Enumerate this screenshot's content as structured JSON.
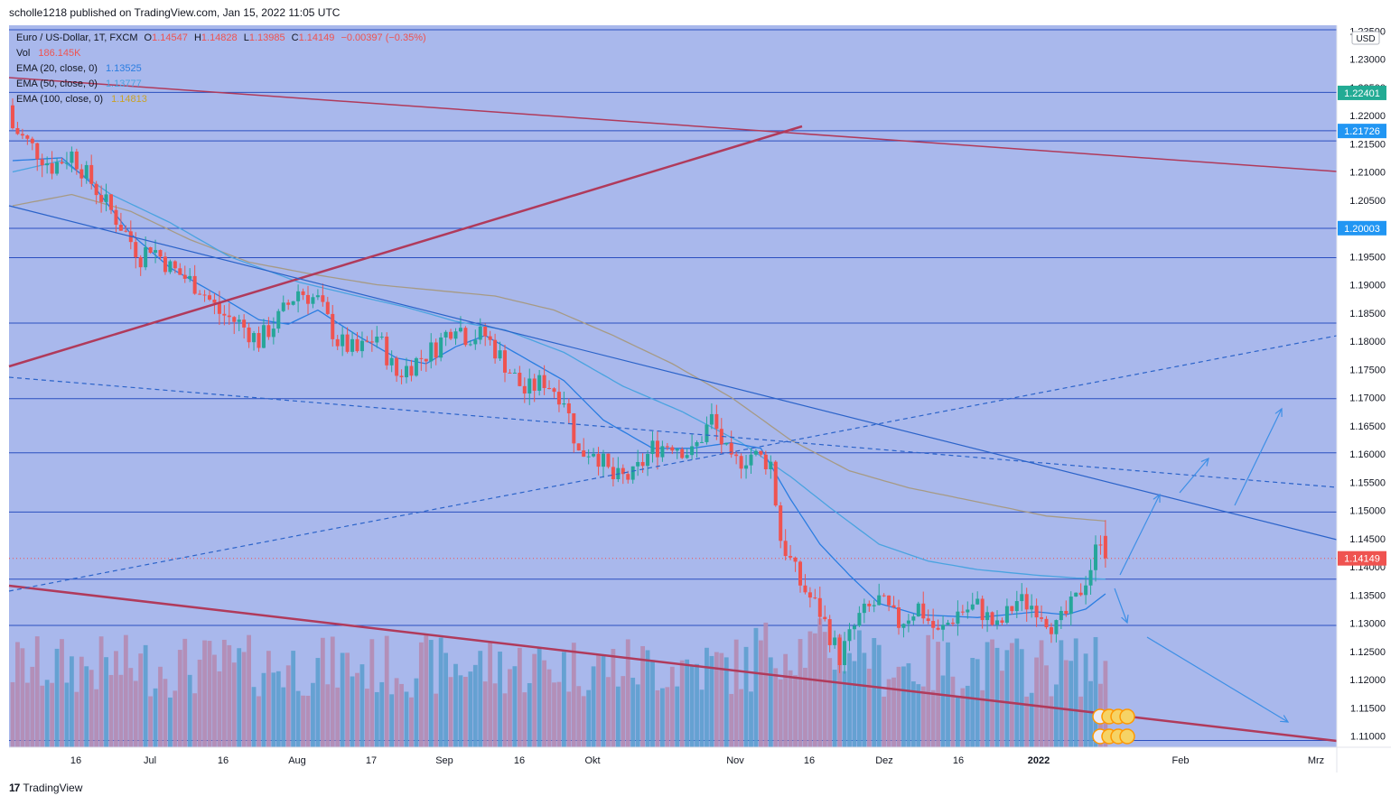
{
  "header": {
    "text": "scholle1218 published on TradingView.com, Jan 15, 2022 11:05 UTC"
  },
  "legend": {
    "symbol": "Euro / US-Dollar, 1T, FXCM",
    "ohlc": {
      "o_label": "O",
      "o": "1.14547",
      "h_label": "H",
      "h": "1.14828",
      "l_label": "L",
      "l": "1.13985",
      "c_label": "C",
      "c": "1.14149",
      "change": "−0.00397 (−0.35%)"
    },
    "vol": {
      "label": "Vol",
      "value": "186.145K"
    },
    "ema20": {
      "label": "EMA (20, close, 0)",
      "value": "1.13525"
    },
    "ema50": {
      "label": "EMA (50, close, 0)",
      "value": "1.13777"
    },
    "ema100": {
      "label": "EMA (100, close, 0)",
      "value": "1.14813"
    }
  },
  "footer": {
    "logo": "17",
    "brand": "TradingView"
  },
  "colors": {
    "background": "#a9b8ec",
    "up": "#26a69a",
    "down": "#ef5350",
    "ema20": "#2a7de1",
    "ema50": "#4aa3e0",
    "ema100": "#a69a85",
    "trendline": "#b03a5b",
    "drawing_blue": "#2b63c9",
    "arrows": "#3d8fe6",
    "label_green": "#22ab94",
    "label_blue": "#2196f3",
    "volume_up": "#5d9fcf",
    "volume_down": "#b48bb3"
  },
  "chart_data": {
    "type": "candlestick",
    "currency": "USD",
    "ylim": [
      1.108,
      1.236
    ],
    "y_ticks": [
      "1.23500",
      "1.23000",
      "1.22500",
      "1.22000",
      "1.21500",
      "1.21000",
      "1.20500",
      "1.20000",
      "1.19500",
      "1.19000",
      "1.18500",
      "1.18000",
      "1.17500",
      "1.17000",
      "1.16500",
      "1.16000",
      "1.15500",
      "1.15000",
      "1.14500",
      "1.14000",
      "1.13500",
      "1.13000",
      "1.12500",
      "1.12000",
      "1.11500",
      "1.11000"
    ],
    "x_ticks": [
      "16",
      "Jul",
      "16",
      "Aug",
      "17",
      "Sep",
      "16",
      "Okt",
      "Nov",
      "16",
      "Dez",
      "16",
      "2022",
      "Feb",
      "Mrz"
    ],
    "price_labels": [
      {
        "value": "1.22401",
        "color": "#22ab94"
      },
      {
        "value": "1.21726",
        "color": "#2196f3"
      },
      {
        "value": "1.20003",
        "color": "#2196f3"
      },
      {
        "value": "1.14149",
        "color": "#ef5350"
      }
    ],
    "horizontal_levels": [
      1.2352,
      1.2241,
      1.2173,
      1.2155,
      1.2,
      1.1948,
      1.1832,
      1.1698,
      1.1602,
      1.1497,
      1.1378,
      1.1296,
      1.1092
    ],
    "last_price": 1.14149,
    "ohlc_last": {
      "open": 1.14547,
      "high": 1.14828,
      "low": 1.13985,
      "close": 1.14149
    },
    "ema20_last": 1.13525,
    "ema50_last": 1.13777,
    "ema100_last": 1.14813,
    "volume_last": "186.145K",
    "close_path": [
      [
        0,
        1.2178
      ],
      [
        8,
        1.211
      ],
      [
        12,
        1.2132
      ],
      [
        22,
        1.2005
      ],
      [
        26,
        1.195
      ],
      [
        28,
        1.197
      ],
      [
        32,
        1.193
      ],
      [
        38,
        1.1895
      ],
      [
        42,
        1.185
      ],
      [
        46,
        1.1832
      ],
      [
        50,
        1.18
      ],
      [
        54,
        1.184
      ],
      [
        58,
        1.189
      ],
      [
        62,
        1.1872
      ],
      [
        66,
        1.18
      ],
      [
        70,
        1.178
      ],
      [
        74,
        1.181
      ],
      [
        78,
        1.174
      ],
      [
        82,
        1.1765
      ],
      [
        86,
        1.179
      ],
      [
        90,
        1.1835
      ],
      [
        92,
        1.181
      ],
      [
        96,
        1.181
      ],
      [
        100,
        1.176
      ],
      [
        104,
        1.171
      ],
      [
        108,
        1.173
      ],
      [
        112,
        1.17
      ],
      [
        115,
        1.16
      ],
      [
        118,
        1.161
      ],
      [
        122,
        1.1555
      ],
      [
        126,
        1.156
      ],
      [
        130,
        1.161
      ],
      [
        134,
        1.162
      ],
      [
        138,
        1.16
      ],
      [
        142,
        1.1662
      ],
      [
        146,
        1.158
      ],
      [
        150,
        1.16
      ],
      [
        154,
        1.1584
      ],
      [
        156,
        1.145
      ],
      [
        160,
        1.137
      ],
      [
        164,
        1.132
      ],
      [
        168,
        1.124
      ],
      [
        172,
        1.131
      ],
      [
        176,
        1.134
      ],
      [
        180,
        1.13
      ],
      [
        184,
        1.133
      ],
      [
        188,
        1.128
      ],
      [
        192,
        1.132
      ],
      [
        196,
        1.133
      ],
      [
        200,
        1.129
      ],
      [
        204,
        1.134
      ],
      [
        208,
        1.133
      ],
      [
        212,
        1.129
      ],
      [
        216,
        1.134
      ],
      [
        219,
        1.14
      ],
      [
        221,
        1.1454
      ],
      [
        222,
        1.1415
      ]
    ],
    "ema20_path": [
      [
        0,
        1.212
      ],
      [
        10,
        1.2125
      ],
      [
        16,
        1.208
      ],
      [
        24,
        1.199
      ],
      [
        32,
        1.193
      ],
      [
        42,
        1.188
      ],
      [
        50,
        1.1838
      ],
      [
        56,
        1.183
      ],
      [
        62,
        1.1855
      ],
      [
        70,
        1.181
      ],
      [
        78,
        1.177
      ],
      [
        84,
        1.176
      ],
      [
        90,
        1.179
      ],
      [
        96,
        1.181
      ],
      [
        104,
        1.177
      ],
      [
        112,
        1.173
      ],
      [
        120,
        1.166
      ],
      [
        130,
        1.161
      ],
      [
        138,
        1.161
      ],
      [
        146,
        1.162
      ],
      [
        152,
        1.161
      ],
      [
        158,
        1.152
      ],
      [
        164,
        1.144
      ],
      [
        170,
        1.1385
      ],
      [
        176,
        1.1335
      ],
      [
        184,
        1.1315
      ],
      [
        196,
        1.131
      ],
      [
        208,
        1.132
      ],
      [
        214,
        1.1315
      ],
      [
        218,
        1.1325
      ],
      [
        222,
        1.1352
      ]
    ],
    "ema50_path": [
      [
        0,
        1.21
      ],
      [
        10,
        1.212
      ],
      [
        20,
        1.206
      ],
      [
        32,
        1.201
      ],
      [
        44,
        1.195
      ],
      [
        58,
        1.1905
      ],
      [
        70,
        1.188
      ],
      [
        80,
        1.186
      ],
      [
        90,
        1.1835
      ],
      [
        100,
        1.182
      ],
      [
        112,
        1.178
      ],
      [
        124,
        1.172
      ],
      [
        136,
        1.1675
      ],
      [
        148,
        1.162
      ],
      [
        158,
        1.156
      ],
      [
        166,
        1.1505
      ],
      [
        176,
        1.144
      ],
      [
        186,
        1.141
      ],
      [
        196,
        1.1395
      ],
      [
        208,
        1.1385
      ],
      [
        216,
        1.138
      ],
      [
        222,
        1.1378
      ]
    ],
    "ema100_path": [
      [
        0,
        1.204
      ],
      [
        12,
        1.206
      ],
      [
        24,
        1.203
      ],
      [
        36,
        1.198
      ],
      [
        48,
        1.194
      ],
      [
        60,
        1.192
      ],
      [
        74,
        1.19
      ],
      [
        86,
        1.189
      ],
      [
        98,
        1.188
      ],
      [
        110,
        1.1855
      ],
      [
        122,
        1.181
      ],
      [
        134,
        1.176
      ],
      [
        146,
        1.17
      ],
      [
        158,
        1.1625
      ],
      [
        170,
        1.157
      ],
      [
        182,
        1.154
      ],
      [
        196,
        1.1515
      ],
      [
        210,
        1.149
      ],
      [
        222,
        1.1481
      ]
    ]
  }
}
